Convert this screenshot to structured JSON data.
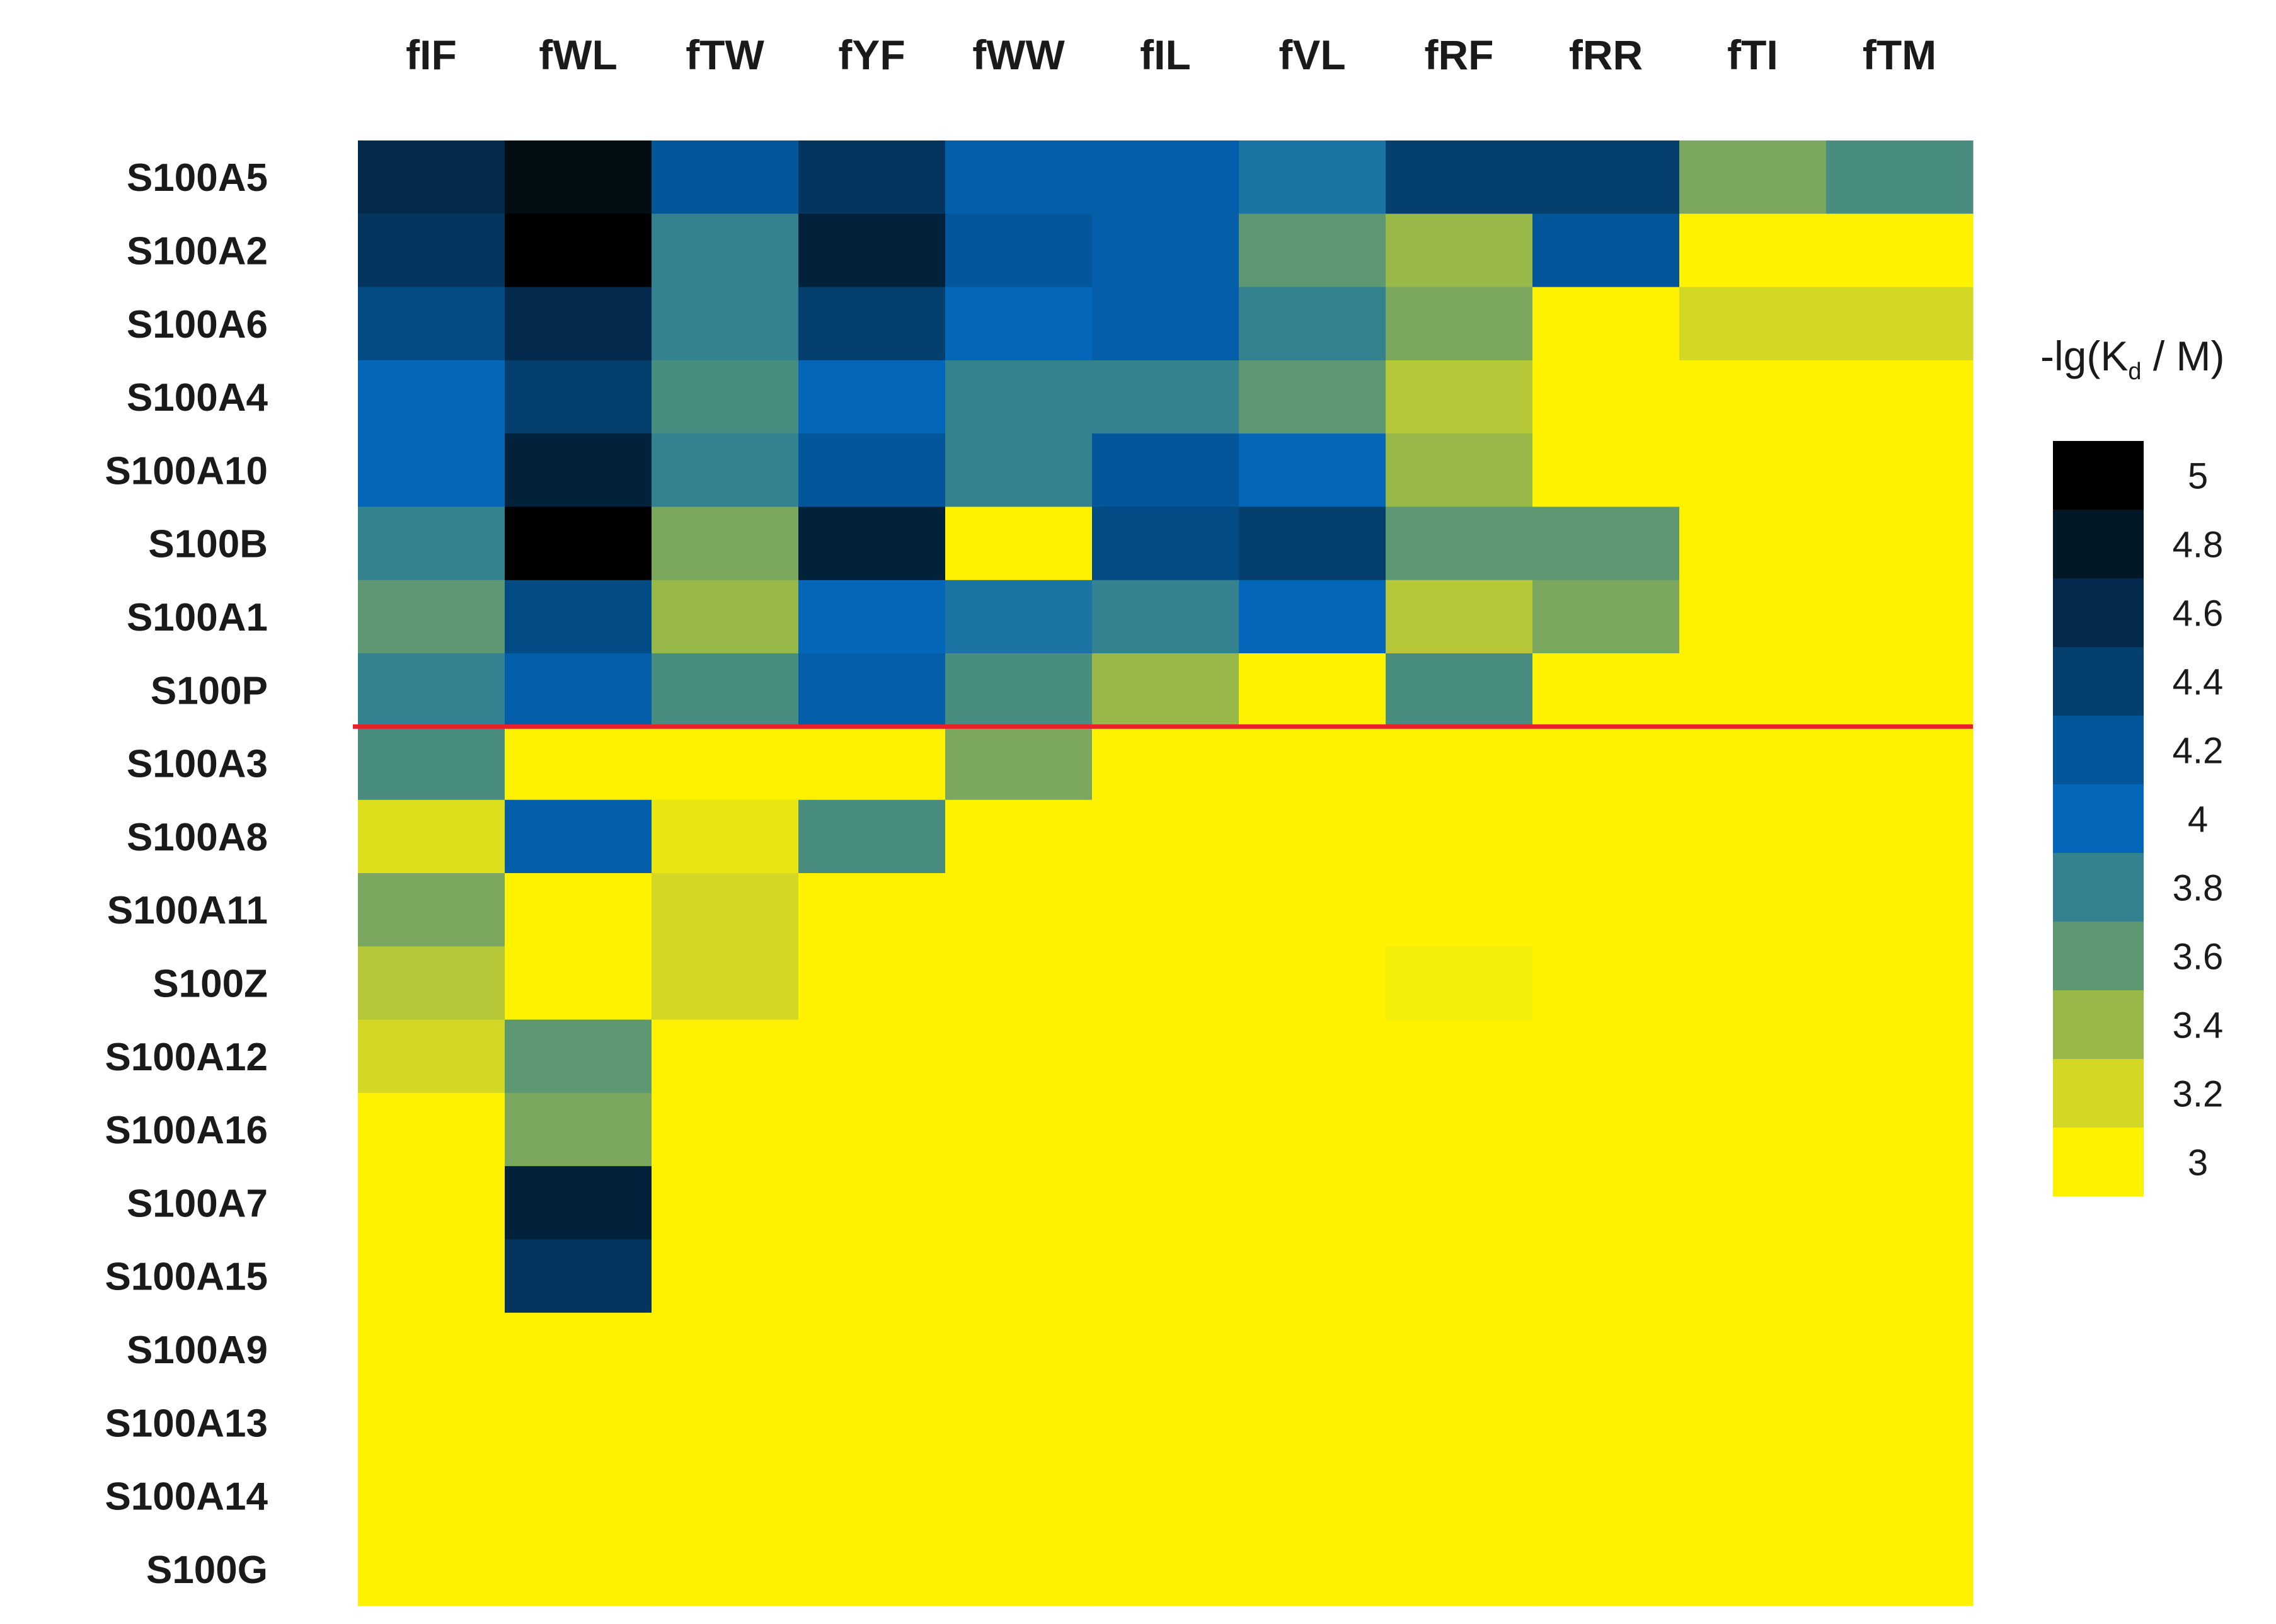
{
  "chart_data": {
    "type": "heatmap",
    "title": "",
    "xlabel": "",
    "ylabel": "",
    "columns": [
      "fIF",
      "fWL",
      "fTW",
      "fYF",
      "fWW",
      "fIL",
      "fVL",
      "fRF",
      "fRR",
      "fTI",
      "fTM"
    ],
    "rows": [
      "S100A5",
      "S100A2",
      "S100A6",
      "S100A4",
      "S100A10",
      "S100B",
      "S100A1",
      "S100P",
      "S100A3",
      "S100A8",
      "S100A11",
      "S100Z",
      "S100A12",
      "S100A16",
      "S100A7",
      "S100A15",
      "S100A9",
      "S100A13",
      "S100A14",
      "S100G"
    ],
    "values": [
      [
        4.6,
        4.9,
        4.2,
        4.5,
        4.1,
        4.1,
        3.9,
        4.4,
        4.4,
        3.5,
        3.7
      ],
      [
        4.5,
        5.0,
        3.8,
        4.7,
        4.2,
        4.1,
        3.6,
        3.4,
        4.2,
        3.0,
        3.0
      ],
      [
        4.3,
        4.6,
        3.8,
        4.4,
        4.0,
        4.1,
        3.8,
        3.5,
        3.0,
        3.2,
        3.2
      ],
      [
        4.0,
        4.4,
        3.7,
        4.0,
        3.8,
        3.8,
        3.6,
        3.3,
        3.0,
        3.0,
        3.0
      ],
      [
        4.0,
        4.7,
        3.8,
        4.2,
        3.8,
        4.2,
        4.0,
        3.4,
        3.0,
        3.0,
        3.0
      ],
      [
        3.8,
        5.0,
        3.5,
        4.7,
        3.0,
        4.3,
        4.4,
        3.6,
        3.6,
        3.0,
        3.0
      ],
      [
        3.6,
        4.3,
        3.4,
        4.0,
        3.9,
        3.8,
        4.0,
        3.3,
        3.5,
        3.0,
        3.0
      ],
      [
        3.8,
        4.1,
        3.7,
        4.1,
        3.7,
        3.4,
        3.0,
        3.7,
        3.0,
        3.0,
        3.0
      ],
      [
        3.7,
        3.0,
        3.0,
        3.0,
        3.5,
        3.0,
        3.0,
        3.0,
        3.0,
        3.0,
        3.0
      ],
      [
        3.15,
        4.1,
        3.1,
        3.7,
        3.0,
        3.0,
        3.0,
        3.0,
        3.0,
        3.0,
        3.0
      ],
      [
        3.5,
        3.0,
        3.2,
        3.0,
        3.0,
        3.0,
        3.0,
        3.0,
        3.0,
        3.0,
        3.0
      ],
      [
        3.3,
        3.0,
        3.2,
        3.0,
        3.0,
        3.0,
        3.0,
        3.05,
        3.0,
        3.0,
        3.0
      ],
      [
        3.2,
        3.6,
        3.0,
        3.0,
        3.0,
        3.0,
        3.0,
        3.0,
        3.0,
        3.0,
        3.0
      ],
      [
        3.0,
        3.5,
        3.0,
        3.0,
        3.0,
        3.0,
        3.0,
        3.0,
        3.0,
        3.0,
        3.0
      ],
      [
        3.0,
        4.7,
        3.0,
        3.0,
        3.0,
        3.0,
        3.0,
        3.0,
        3.0,
        3.0,
        3.0
      ],
      [
        3.0,
        4.5,
        3.0,
        3.0,
        3.0,
        3.0,
        3.0,
        3.0,
        3.0,
        3.0,
        3.0
      ],
      [
        3.0,
        3.0,
        3.0,
        3.0,
        3.0,
        3.0,
        3.0,
        3.0,
        3.0,
        3.0,
        3.0
      ],
      [
        3.0,
        3.0,
        3.0,
        3.0,
        3.0,
        3.0,
        3.0,
        3.0,
        3.0,
        3.0,
        3.0
      ],
      [
        3.0,
        3.0,
        3.0,
        3.0,
        3.0,
        3.0,
        3.0,
        3.0,
        3.0,
        3.0,
        3.0
      ],
      [
        3.0,
        3.0,
        3.0,
        3.0,
        3.0,
        3.0,
        3.0,
        3.0,
        3.0,
        3.0,
        3.0
      ]
    ],
    "color_scale": {
      "title_main": "-lg(K",
      "title_sub": "d",
      "title_tail": " / M)",
      "min": 3,
      "max": 5,
      "stops": [
        {
          "value": 3.0,
          "color": "#fff200"
        },
        {
          "value": 3.2,
          "color": "#d3d825"
        },
        {
          "value": 3.4,
          "color": "#98b84a"
        },
        {
          "value": 3.6,
          "color": "#5e9872"
        },
        {
          "value": 3.8,
          "color": "#34828f"
        },
        {
          "value": 4.0,
          "color": "#0466b8"
        },
        {
          "value": 4.2,
          "color": "#03569a"
        },
        {
          "value": 4.4,
          "color": "#043f6e"
        },
        {
          "value": 4.6,
          "color": "#032a4d"
        },
        {
          "value": 4.8,
          "color": "#021827"
        },
        {
          "value": 5.0,
          "color": "#000000"
        }
      ],
      "legend_ticks": [
        "5",
        "4.8",
        "4.6",
        "4.4",
        "4.2",
        "4",
        "3.8",
        "3.6",
        "3.4",
        "3.2",
        "3"
      ]
    },
    "separator": {
      "after_row": 7,
      "color": "#e8202a"
    },
    "legend_position": "right",
    "grid": false
  }
}
